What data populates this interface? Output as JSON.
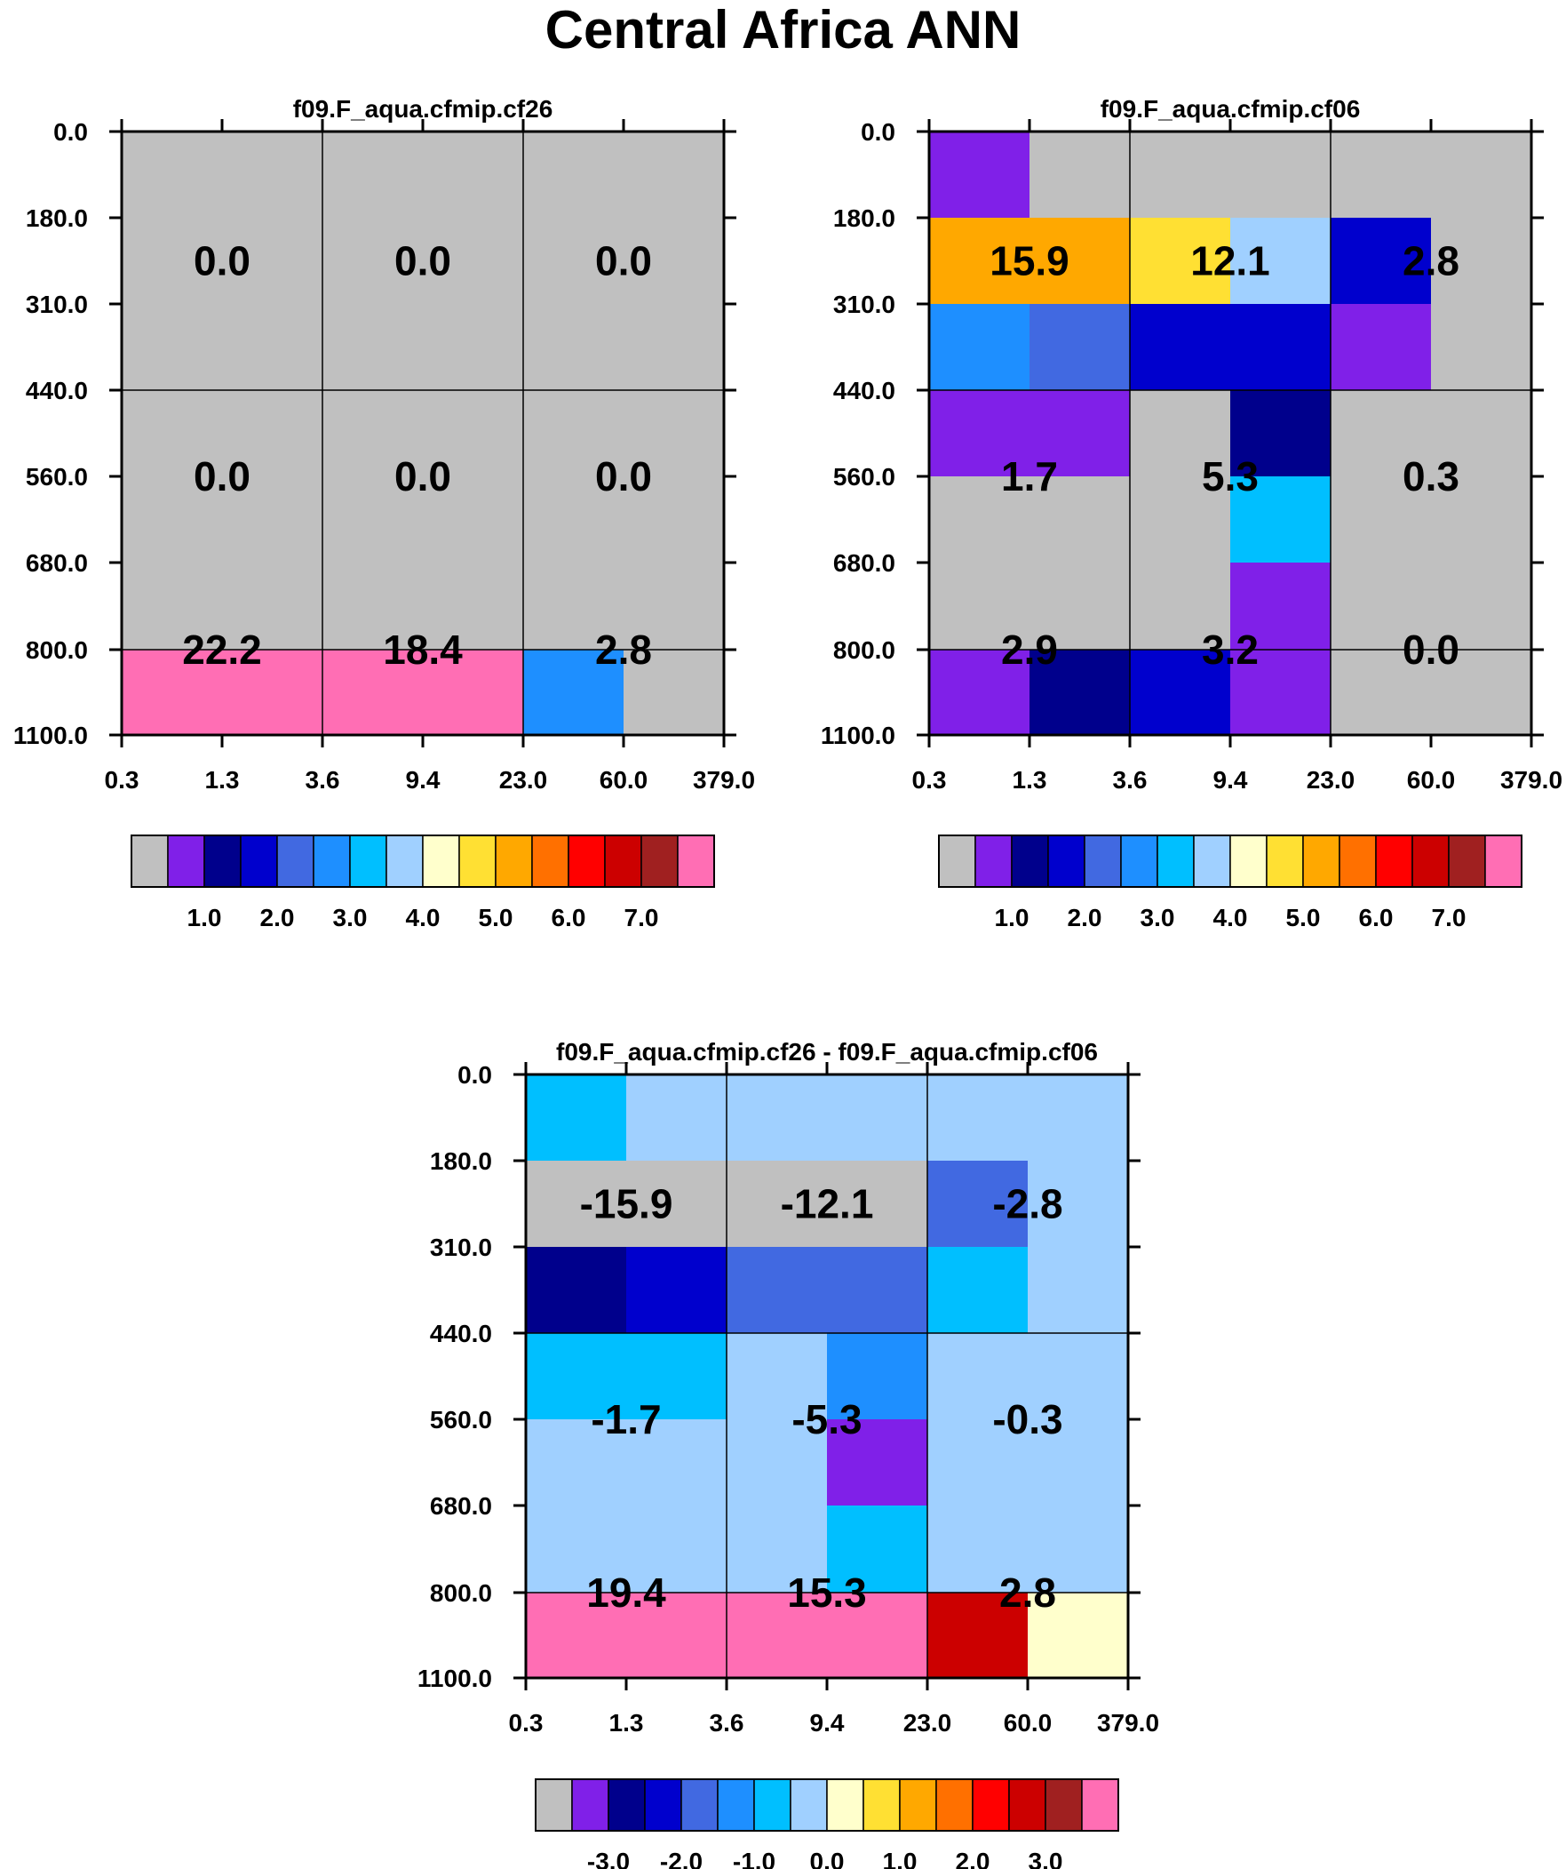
{
  "title": "Central Africa ANN",
  "palette": [
    "#c0c0c0",
    "#8020e8",
    "#00008c",
    "#0000cd",
    "#4169e1",
    "#1e8fff",
    "#00bfff",
    "#a0d0ff",
    "#ffffcc",
    "#ffe033",
    "#ffa800",
    "#ff7000",
    "#ff0000",
    "#cc0000",
    "#a02020",
    "#ff6eb4"
  ],
  "chart_data": [
    {
      "type": "heatmap",
      "title": "f09.F_aqua.cfmip.cf26",
      "x_ticks": [
        "0.3",
        "1.3",
        "3.6",
        "9.4",
        "23.0",
        "60.0",
        "379.0"
      ],
      "y_ticks": [
        "0.0",
        "180.0",
        "310.0",
        "440.0",
        "560.0",
        "680.0",
        "800.0",
        "1100.0"
      ],
      "cells": [
        [
          0,
          0,
          0,
          0,
          0,
          0
        ],
        [
          0,
          0,
          0,
          0,
          0,
          0
        ],
        [
          0,
          0,
          0,
          0,
          0,
          0
        ],
        [
          0,
          0,
          0,
          0,
          0,
          0
        ],
        [
          0,
          0,
          0,
          0,
          0,
          0
        ],
        [
          0,
          0,
          0,
          0,
          0,
          0
        ],
        [
          15,
          15,
          15,
          15,
          5,
          0
        ]
      ],
      "box_labels": [
        [
          "0.0",
          "0.0",
          "0.0"
        ],
        [
          "0.0",
          "0.0",
          "0.0"
        ],
        [
          "22.2",
          "18.4",
          "2.8"
        ]
      ],
      "colorbar_labels": [
        "1.0",
        "2.0",
        "3.0",
        "4.0",
        "5.0",
        "6.0",
        "7.0"
      ],
      "colorbar_label_start": 1
    },
    {
      "type": "heatmap",
      "title": "f09.F_aqua.cfmip.cf06",
      "x_ticks": [
        "0.3",
        "1.3",
        "3.6",
        "9.4",
        "23.0",
        "60.0",
        "379.0"
      ],
      "y_ticks": [
        "0.0",
        "180.0",
        "310.0",
        "440.0",
        "560.0",
        "680.0",
        "800.0",
        "1100.0"
      ],
      "cells": [
        [
          1,
          0,
          0,
          0,
          0,
          0
        ],
        [
          10,
          10,
          9,
          7,
          3,
          0
        ],
        [
          5,
          4,
          3,
          3,
          1,
          0
        ],
        [
          1,
          1,
          0,
          2,
          0,
          0
        ],
        [
          0,
          0,
          0,
          6,
          0,
          0
        ],
        [
          0,
          0,
          0,
          1,
          0,
          0
        ],
        [
          1,
          2,
          3,
          1,
          0,
          0
        ]
      ],
      "box_labels": [
        [
          "",
          "",
          ""
        ],
        [
          "15.9",
          "12.1",
          "2.8"
        ],
        [
          "1.7",
          "5.3",
          "0.3"
        ],
        [
          "2.9",
          "3.2",
          "0.0"
        ]
      ],
      "colorbar_labels": [
        "1.0",
        "2.0",
        "3.0",
        "4.0",
        "5.0",
        "6.0",
        "7.0"
      ],
      "colorbar_label_start": 1
    },
    {
      "type": "heatmap",
      "title": "f09.F_aqua.cfmip.cf26 - f09.F_aqua.cfmip.cf06",
      "x_ticks": [
        "0.3",
        "1.3",
        "3.6",
        "9.4",
        "23.0",
        "60.0",
        "379.0"
      ],
      "y_ticks": [
        "0.0",
        "180.0",
        "310.0",
        "440.0",
        "560.0",
        "680.0",
        "800.0",
        "1100.0"
      ],
      "cells": [
        [
          6,
          7,
          7,
          7,
          7,
          7
        ],
        [
          0,
          0,
          0,
          0,
          4,
          7
        ],
        [
          2,
          3,
          4,
          4,
          6,
          7
        ],
        [
          6,
          6,
          7,
          5,
          7,
          7
        ],
        [
          7,
          7,
          7,
          1,
          7,
          7
        ],
        [
          7,
          7,
          7,
          6,
          7,
          7
        ],
        [
          15,
          15,
          15,
          15,
          13,
          8
        ]
      ],
      "box_labels": [
        [
          "",
          "",
          ""
        ],
        [
          "-15.9",
          "-12.1",
          "-2.8"
        ],
        [
          "-1.7",
          "-5.3",
          "-0.3"
        ],
        [
          "19.4",
          "15.3",
          "2.8"
        ]
      ],
      "colorbar_labels": [
        "-3.0",
        "-2.0",
        "-1.0",
        "0.0",
        "1.0",
        "2.0",
        "3.0"
      ],
      "colorbar_label_start": 1
    }
  ]
}
